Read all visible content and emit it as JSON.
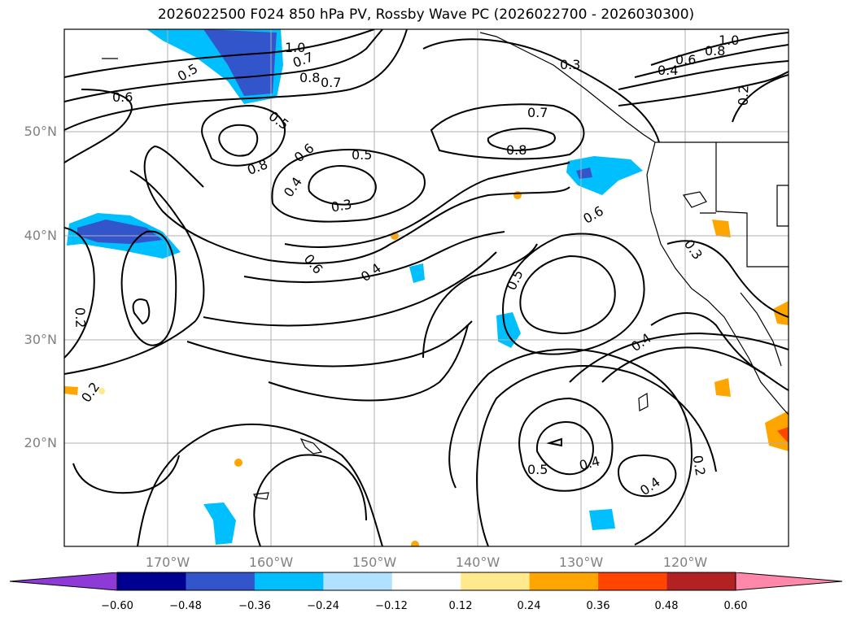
{
  "title": "2026022500 F024 850 hPa PV, Rossby Wave PC (2026022700 - 2026030300)",
  "latitude_labels": [
    "50°N",
    "40°N",
    "30°N",
    "20°N"
  ],
  "longitude_labels": [
    "170°W",
    "160°W",
    "150°W",
    "140°W",
    "130°W",
    "120°W"
  ],
  "contour_labels": [
    "1.0",
    "0.8",
    "0.6",
    "0.4",
    "0.2",
    "0.3",
    "0.5",
    "0.7",
    "1.0",
    "0.8",
    "0.7",
    "0.6",
    "0.5",
    "0.7",
    "0.8",
    "0.6",
    "0.8",
    "0.4",
    "0.5",
    "0.3",
    "0.6",
    "0.4",
    "0.6",
    "0.5",
    "0.3",
    "0.2",
    "0.2",
    "0.4",
    "0.5",
    "0.4",
    "0.4",
    "0.2"
  ],
  "colorbar": {
    "colors": [
      "#8e3ad6",
      "#000090",
      "#3355cc",
      "#00bfff",
      "#b0e2ff",
      "#ffffff",
      "#ffe98c",
      "#ffa500",
      "#ff4500",
      "#b22222",
      "#ff88aa"
    ],
    "tick_labels": [
      "−0.60",
      "−0.48",
      "−0.36",
      "−0.24",
      "−0.12",
      "0.12",
      "0.24",
      "0.36",
      "0.48",
      "0.60"
    ]
  }
}
